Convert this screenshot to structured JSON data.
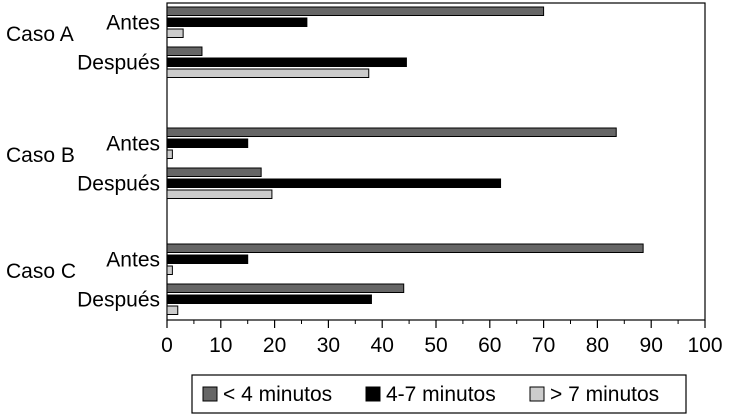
{
  "chart_data": {
    "type": "bar",
    "orientation": "horizontal",
    "groups": [
      "Caso A",
      "Caso B",
      "Caso C"
    ],
    "subgroups": [
      "Antes",
      "Después"
    ],
    "series": [
      {
        "name": "< 4 minutos",
        "color": "#666666",
        "values": [
          [
            70,
            6.5
          ],
          [
            83.5,
            17.5
          ],
          [
            88.5,
            44
          ]
        ]
      },
      {
        "name": "4-7 minutos",
        "color": "#000000",
        "values": [
          [
            26,
            44.5
          ],
          [
            15,
            62
          ],
          [
            15,
            38
          ]
        ]
      },
      {
        "name": "> 7 minutos",
        "color": "#cccccc",
        "values": [
          [
            3,
            37.5
          ],
          [
            1,
            19.5
          ],
          [
            1,
            2
          ]
        ]
      }
    ],
    "xlim": [
      0,
      100
    ],
    "xticks": [
      "0",
      "10",
      "20",
      "30",
      "40",
      "50",
      "60",
      "70",
      "80",
      "90",
      "100"
    ],
    "grid": false,
    "legend_position": "bottom"
  }
}
